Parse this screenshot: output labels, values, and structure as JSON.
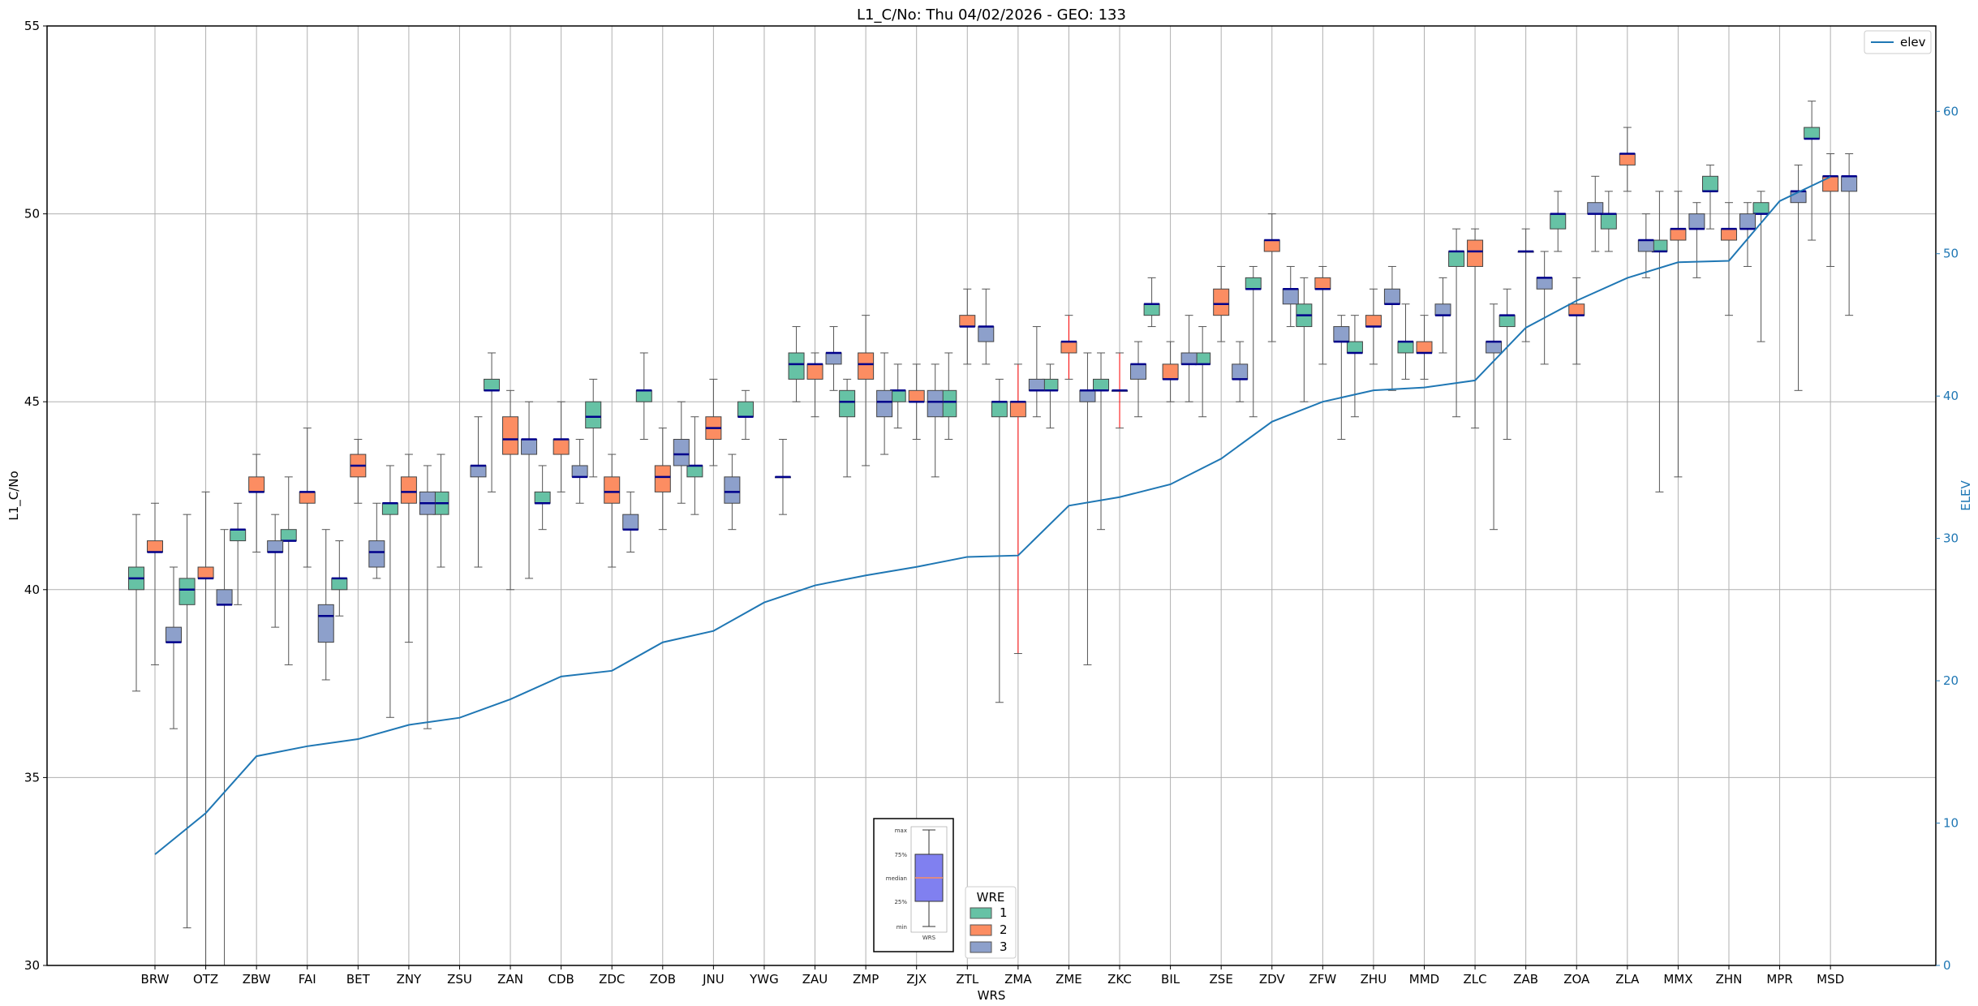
{
  "chart_data": {
    "type": "box",
    "title": "L1_C/No: Thu 04/02/2026 - GEO: 133",
    "xlabel": "WRS",
    "ylabel": "L1_C/No",
    "y2label": "ELEV",
    "ylim": [
      30,
      55
    ],
    "y2lim": [
      0,
      66
    ],
    "yticks": [
      30,
      35,
      40,
      45,
      50,
      55
    ],
    "y2ticks": [
      0,
      10,
      20,
      30,
      40,
      50,
      60
    ],
    "grid": true,
    "categories": [
      "BRW",
      "OTZ",
      "ZBW",
      "FAI",
      "BET",
      "ZNY",
      "ZSU",
      "ZAN",
      "CDB",
      "ZDC",
      "ZOB",
      "JNU",
      "YWG",
      "ZAU",
      "ZMP",
      "ZJX",
      "ZTL",
      "ZMA",
      "ZME",
      "ZKC",
      "BIL",
      "ZSE",
      "ZDV",
      "ZFW",
      "ZHU",
      "MMD",
      "ZLC",
      "ZAB",
      "ZOA",
      "ZLA",
      "MMX",
      "ZHN",
      "MPR",
      "MSD"
    ],
    "box_legend_title": "WRE",
    "line_legend_label": "elev",
    "colors": {
      "1": "#66c2a5",
      "2": "#fc8d62",
      "3": "#8da0cb",
      "median": "#00008b",
      "line": "#1f77b4",
      "outlier_whisker": "#ff0000"
    },
    "series": [
      {
        "name": "1",
        "boxes": [
          {
            "category": "BRW",
            "min": 37.3,
            "q1": 40.0,
            "median": 40.3,
            "q3": 40.6,
            "max": 42.0
          },
          {
            "category": "OTZ",
            "min": 31.0,
            "q1": 39.6,
            "median": 40.0,
            "q3": 40.3,
            "max": 42.0
          },
          {
            "category": "ZBW",
            "min": 39.6,
            "q1": 41.3,
            "median": 41.6,
            "q3": 41.6,
            "max": 42.3
          },
          {
            "category": "FAI",
            "min": 38.0,
            "q1": 41.3,
            "median": 41.3,
            "q3": 41.6,
            "max": 43.0
          },
          {
            "category": "BET",
            "min": 39.3,
            "q1": 40.0,
            "median": 40.3,
            "q3": 40.3,
            "max": 41.3
          },
          {
            "category": "ZNY",
            "min": 36.6,
            "q1": 42.0,
            "median": 42.3,
            "q3": 42.3,
            "max": 43.3
          },
          {
            "category": "ZSU",
            "min": 40.6,
            "q1": 42.0,
            "median": 42.3,
            "q3": 42.6,
            "max": 43.6
          },
          {
            "category": "ZAN",
            "min": 42.6,
            "q1": 45.3,
            "median": 45.3,
            "q3": 45.6,
            "max": 46.3
          },
          {
            "category": "CDB",
            "min": 41.6,
            "q1": 42.3,
            "median": 42.3,
            "q3": 42.6,
            "max": 43.3
          },
          {
            "category": "ZDC",
            "min": 43.0,
            "q1": 44.3,
            "median": 44.6,
            "q3": 45.0,
            "max": 45.6
          },
          {
            "category": "ZOB",
            "min": 44.0,
            "q1": 45.0,
            "median": 45.3,
            "q3": 45.3,
            "max": 46.3
          },
          {
            "category": "JNU",
            "min": 42.0,
            "q1": 43.0,
            "median": 43.3,
            "q3": 43.3,
            "max": 44.6
          },
          {
            "category": "YWG",
            "min": 44.0,
            "q1": 44.6,
            "median": 44.6,
            "q3": 45.0,
            "max": 45.3
          },
          {
            "category": "ZAU",
            "min": 45.0,
            "q1": 45.6,
            "median": 46.0,
            "q3": 46.3,
            "max": 47.0
          },
          {
            "category": "ZMP",
            "min": 43.0,
            "q1": 44.6,
            "median": 45.0,
            "q3": 45.3,
            "max": 45.6
          },
          {
            "category": "ZJX",
            "min": 44.3,
            "q1": 45.0,
            "median": 45.3,
            "q3": 45.3,
            "max": 46.0
          },
          {
            "category": "ZTL",
            "min": 44.0,
            "q1": 44.6,
            "median": 45.0,
            "q3": 45.3,
            "max": 46.3
          },
          {
            "category": "ZMA",
            "min": 37.0,
            "q1": 44.6,
            "median": 45.0,
            "q3": 45.0,
            "max": 45.6
          },
          {
            "category": "ZME",
            "min": 44.3,
            "q1": 45.3,
            "median": 45.3,
            "q3": 45.6,
            "max": 46.0
          },
          {
            "category": "ZKC",
            "min": 41.6,
            "q1": 45.3,
            "median": 45.3,
            "q3": 45.6,
            "max": 46.3
          },
          {
            "category": "BIL",
            "min": 47.0,
            "q1": 47.3,
            "median": 47.6,
            "q3": 47.6,
            "max": 48.3
          },
          {
            "category": "ZSE",
            "min": 44.6,
            "q1": 46.0,
            "median": 46.0,
            "q3": 46.3,
            "max": 47.0
          },
          {
            "category": "ZDV",
            "min": 44.6,
            "q1": 48.0,
            "median": 48.0,
            "q3": 48.3,
            "max": 48.6
          },
          {
            "category": "ZFW",
            "min": 45.0,
            "q1": 47.0,
            "median": 47.3,
            "q3": 47.6,
            "max": 48.3
          },
          {
            "category": "ZHU",
            "min": 44.6,
            "q1": 46.3,
            "median": 46.3,
            "q3": 46.6,
            "max": 47.3
          },
          {
            "category": "MMD",
            "min": 45.6,
            "q1": 46.3,
            "median": 46.6,
            "q3": 46.6,
            "max": 47.6
          },
          {
            "category": "ZLC",
            "min": 44.6,
            "q1": 48.6,
            "median": 49.0,
            "q3": 49.0,
            "max": 49.6
          },
          {
            "category": "ZAB",
            "min": 44.0,
            "q1": 47.0,
            "median": 47.3,
            "q3": 47.3,
            "max": 48.0
          },
          {
            "category": "ZOA",
            "min": 49.0,
            "q1": 49.6,
            "median": 50.0,
            "q3": 50.0,
            "max": 50.6
          },
          {
            "category": "ZLA",
            "min": 49.0,
            "q1": 49.6,
            "median": 50.0,
            "q3": 50.0,
            "max": 50.6
          },
          {
            "category": "MMX",
            "min": 42.6,
            "q1": 49.0,
            "median": 49.0,
            "q3": 49.3,
            "max": 50.6
          },
          {
            "category": "ZHN",
            "min": 49.6,
            "q1": 50.6,
            "median": 50.6,
            "q3": 51.0,
            "max": 51.3
          },
          {
            "category": "MPR",
            "min": 46.6,
            "q1": 50.0,
            "median": 50.0,
            "q3": 50.3,
            "max": 50.6
          },
          {
            "category": "MSD",
            "min": 49.3,
            "q1": 52.0,
            "median": 52.0,
            "q3": 52.3,
            "max": 53.0
          }
        ]
      },
      {
        "name": "2",
        "boxes": [
          {
            "category": "BRW",
            "min": 38.0,
            "q1": 41.0,
            "median": 41.0,
            "q3": 41.3,
            "max": 42.3
          },
          {
            "category": "OTZ",
            "min": 29.6,
            "q1": 40.3,
            "median": 40.3,
            "q3": 40.6,
            "max": 42.6
          },
          {
            "category": "ZBW",
            "min": 41.0,
            "q1": 42.6,
            "median": 42.6,
            "q3": 43.0,
            "max": 43.6
          },
          {
            "category": "FAI",
            "min": 40.6,
            "q1": 42.3,
            "median": 42.6,
            "q3": 42.6,
            "max": 44.3
          },
          {
            "category": "BET",
            "min": 42.3,
            "q1": 43.0,
            "median": 43.3,
            "q3": 43.6,
            "max": 44.0
          },
          {
            "category": "ZNY",
            "min": 38.6,
            "q1": 42.3,
            "median": 42.6,
            "q3": 43.0,
            "max": 43.6
          },
          {
            "category": "ZAN",
            "min": 40.0,
            "q1": 43.6,
            "median": 44.0,
            "q3": 44.6,
            "max": 45.3
          },
          {
            "category": "CDB",
            "min": 42.6,
            "q1": 43.6,
            "median": 44.0,
            "q3": 44.0,
            "max": 45.0
          },
          {
            "category": "ZDC",
            "min": 40.6,
            "q1": 42.3,
            "median": 42.6,
            "q3": 43.0,
            "max": 43.6
          },
          {
            "category": "ZOB",
            "min": 41.6,
            "q1": 42.6,
            "median": 43.0,
            "q3": 43.3,
            "max": 44.3
          },
          {
            "category": "JNU",
            "min": 43.3,
            "q1": 44.0,
            "median": 44.3,
            "q3": 44.6,
            "max": 45.6
          },
          {
            "category": "ZAU",
            "min": 44.6,
            "q1": 45.6,
            "median": 46.0,
            "q3": 46.0,
            "max": 46.3
          },
          {
            "category": "ZMP",
            "min": 43.3,
            "q1": 45.6,
            "median": 46.0,
            "q3": 46.3,
            "max": 47.3
          },
          {
            "category": "ZJX",
            "min": 44.0,
            "q1": 45.0,
            "median": 45.0,
            "q3": 45.3,
            "max": 46.0
          },
          {
            "category": "ZTL",
            "min": 46.0,
            "q1": 47.0,
            "median": 47.0,
            "q3": 47.3,
            "max": 48.0
          },
          {
            "category": "ZMA",
            "min": 38.3,
            "q1": 44.6,
            "median": 45.0,
            "q3": 45.0,
            "max": 46.0
          },
          {
            "category": "ZME",
            "min": 45.6,
            "q1": 46.3,
            "median": 46.6,
            "q3": 46.6,
            "max": 47.3
          },
          {
            "category": "ZKC",
            "min": 44.3,
            "q1": 45.3,
            "median": 45.3,
            "q3": 45.3,
            "max": 46.3
          },
          {
            "category": "BIL",
            "min": 45.0,
            "q1": 45.6,
            "median": 45.6,
            "q3": 46.0,
            "max": 46.6
          },
          {
            "category": "ZSE",
            "min": 46.6,
            "q1": 47.3,
            "median": 47.6,
            "q3": 48.0,
            "max": 48.6
          },
          {
            "category": "ZDV",
            "min": 46.6,
            "q1": 49.0,
            "median": 49.3,
            "q3": 49.3,
            "max": 50.0
          },
          {
            "category": "ZFW",
            "min": 46.0,
            "q1": 48.0,
            "median": 48.0,
            "q3": 48.3,
            "max": 48.6
          },
          {
            "category": "ZHU",
            "min": 46.0,
            "q1": 47.0,
            "median": 47.0,
            "q3": 47.3,
            "max": 48.0
          },
          {
            "category": "MMD",
            "min": 45.6,
            "q1": 46.3,
            "median": 46.3,
            "q3": 46.6,
            "max": 47.3
          },
          {
            "category": "ZLC",
            "min": 44.3,
            "q1": 48.6,
            "median": 49.0,
            "q3": 49.3,
            "max": 49.6
          },
          {
            "category": "ZAB",
            "min": 46.6,
            "q1": 49.0,
            "median": 49.0,
            "q3": 49.0,
            "max": 49.6
          },
          {
            "category": "ZOA",
            "min": 46.0,
            "q1": 47.3,
            "median": 47.3,
            "q3": 47.6,
            "max": 48.3
          },
          {
            "category": "ZLA",
            "min": 50.6,
            "q1": 51.3,
            "median": 51.6,
            "q3": 51.6,
            "max": 52.3
          },
          {
            "category": "MMX",
            "min": 43.0,
            "q1": 49.3,
            "median": 49.6,
            "q3": 49.6,
            "max": 50.6
          },
          {
            "category": "ZHN",
            "min": 47.3,
            "q1": 49.3,
            "median": 49.6,
            "q3": 49.6,
            "max": 50.3
          },
          {
            "category": "MSD",
            "min": 48.6,
            "q1": 50.6,
            "median": 51.0,
            "q3": 51.0,
            "max": 51.6
          }
        ]
      },
      {
        "name": "3",
        "boxes": [
          {
            "category": "BRW",
            "min": 36.3,
            "q1": 38.6,
            "median": 38.6,
            "q3": 39.0,
            "max": 40.6
          },
          {
            "category": "OTZ",
            "min": 29.6,
            "q1": 39.6,
            "median": 39.6,
            "q3": 40.0,
            "max": 41.6
          },
          {
            "category": "ZBW",
            "min": 39.0,
            "q1": 41.0,
            "median": 41.0,
            "q3": 41.3,
            "max": 42.0
          },
          {
            "category": "FAI",
            "min": 37.6,
            "q1": 38.6,
            "median": 39.3,
            "q3": 39.6,
            "max": 41.6
          },
          {
            "category": "BET",
            "min": 40.3,
            "q1": 40.6,
            "median": 41.0,
            "q3": 41.3,
            "max": 42.3
          },
          {
            "category": "ZNY",
            "min": 36.3,
            "q1": 42.0,
            "median": 42.3,
            "q3": 42.6,
            "max": 43.3
          },
          {
            "category": "ZSU",
            "min": 40.6,
            "q1": 43.0,
            "median": 43.3,
            "q3": 43.3,
            "max": 44.6
          },
          {
            "category": "ZAN",
            "min": 40.3,
            "q1": 43.6,
            "median": 44.0,
            "q3": 44.0,
            "max": 45.0
          },
          {
            "category": "CDB",
            "min": 42.3,
            "q1": 43.0,
            "median": 43.0,
            "q3": 43.3,
            "max": 44.0
          },
          {
            "category": "ZDC",
            "min": 41.0,
            "q1": 41.6,
            "median": 41.6,
            "q3": 42.0,
            "max": 42.6
          },
          {
            "category": "ZOB",
            "min": 42.3,
            "q1": 43.3,
            "median": 43.6,
            "q3": 44.0,
            "max": 45.0
          },
          {
            "category": "JNU",
            "min": 41.6,
            "q1": 42.3,
            "median": 42.6,
            "q3": 43.0,
            "max": 43.6
          },
          {
            "category": "YWG",
            "min": 42.0,
            "q1": 43.0,
            "median": 43.0,
            "q3": 43.0,
            "max": 44.0
          },
          {
            "category": "ZAU",
            "min": 45.3,
            "q1": 46.0,
            "median": 46.3,
            "q3": 46.3,
            "max": 47.0
          },
          {
            "category": "ZMP",
            "min": 43.6,
            "q1": 44.6,
            "median": 45.0,
            "q3": 45.3,
            "max": 46.3
          },
          {
            "category": "ZJX",
            "min": 43.0,
            "q1": 44.6,
            "median": 45.0,
            "q3": 45.3,
            "max": 46.0
          },
          {
            "category": "ZTL",
            "min": 46.0,
            "q1": 46.6,
            "median": 47.0,
            "q3": 47.0,
            "max": 48.0
          },
          {
            "category": "ZMA",
            "min": 44.6,
            "q1": 45.3,
            "median": 45.3,
            "q3": 45.6,
            "max": 47.0
          },
          {
            "category": "ZME",
            "min": 38.0,
            "q1": 45.0,
            "median": 45.3,
            "q3": 45.3,
            "max": 46.3
          },
          {
            "category": "ZKC",
            "min": 44.6,
            "q1": 45.6,
            "median": 46.0,
            "q3": 46.0,
            "max": 46.6
          },
          {
            "category": "BIL",
            "min": 45.0,
            "q1": 46.0,
            "median": 46.0,
            "q3": 46.3,
            "max": 47.3
          },
          {
            "category": "ZSE",
            "min": 45.0,
            "q1": 45.6,
            "median": 45.6,
            "q3": 46.0,
            "max": 46.6
          },
          {
            "category": "ZDV",
            "min": 47.0,
            "q1": 47.6,
            "median": 48.0,
            "q3": 48.0,
            "max": 48.6
          },
          {
            "category": "ZFW",
            "min": 44.0,
            "q1": 46.6,
            "median": 46.6,
            "q3": 47.0,
            "max": 47.3
          },
          {
            "category": "ZHU",
            "min": 45.3,
            "q1": 47.6,
            "median": 47.6,
            "q3": 48.0,
            "max": 48.6
          },
          {
            "category": "MMD",
            "min": 46.3,
            "q1": 47.3,
            "median": 47.3,
            "q3": 47.6,
            "max": 48.3
          },
          {
            "category": "ZLC",
            "min": 41.6,
            "q1": 46.3,
            "median": 46.6,
            "q3": 46.6,
            "max": 47.6
          },
          {
            "category": "ZAB",
            "min": 46.0,
            "q1": 48.0,
            "median": 48.3,
            "q3": 48.3,
            "max": 49.0
          },
          {
            "category": "ZOA",
            "min": 49.0,
            "q1": 50.0,
            "median": 50.0,
            "q3": 50.3,
            "max": 51.0
          },
          {
            "category": "ZLA",
            "min": 48.3,
            "q1": 49.0,
            "median": 49.3,
            "q3": 49.3,
            "max": 50.0
          },
          {
            "category": "MMX",
            "min": 48.3,
            "q1": 49.6,
            "median": 49.6,
            "q3": 50.0,
            "max": 50.3
          },
          {
            "category": "ZHN",
            "min": 48.6,
            "q1": 49.6,
            "median": 49.6,
            "q3": 50.0,
            "max": 50.3
          },
          {
            "category": "MPR",
            "min": 45.3,
            "q1": 50.3,
            "median": 50.6,
            "q3": 50.6,
            "max": 51.3
          },
          {
            "category": "MSD",
            "min": 47.3,
            "q1": 50.6,
            "median": 51.0,
            "q3": 51.0,
            "max": 51.6
          }
        ]
      }
    ],
    "elev": [
      7.8,
      10.7,
      14.7,
      15.4,
      15.9,
      16.9,
      17.4,
      18.7,
      20.3,
      20.7,
      22.7,
      23.5,
      25.5,
      26.7,
      27.4,
      28.0,
      28.7,
      28.8,
      32.3,
      32.9,
      33.8,
      35.6,
      38.2,
      39.6,
      40.4,
      40.6,
      41.1,
      44.8,
      46.7,
      48.3,
      49.4,
      49.5,
      53.7,
      55.4
    ],
    "inset": {
      "labels": [
        "max",
        "75%",
        "median",
        "25%",
        "min"
      ],
      "xlabel": "WRS"
    }
  }
}
